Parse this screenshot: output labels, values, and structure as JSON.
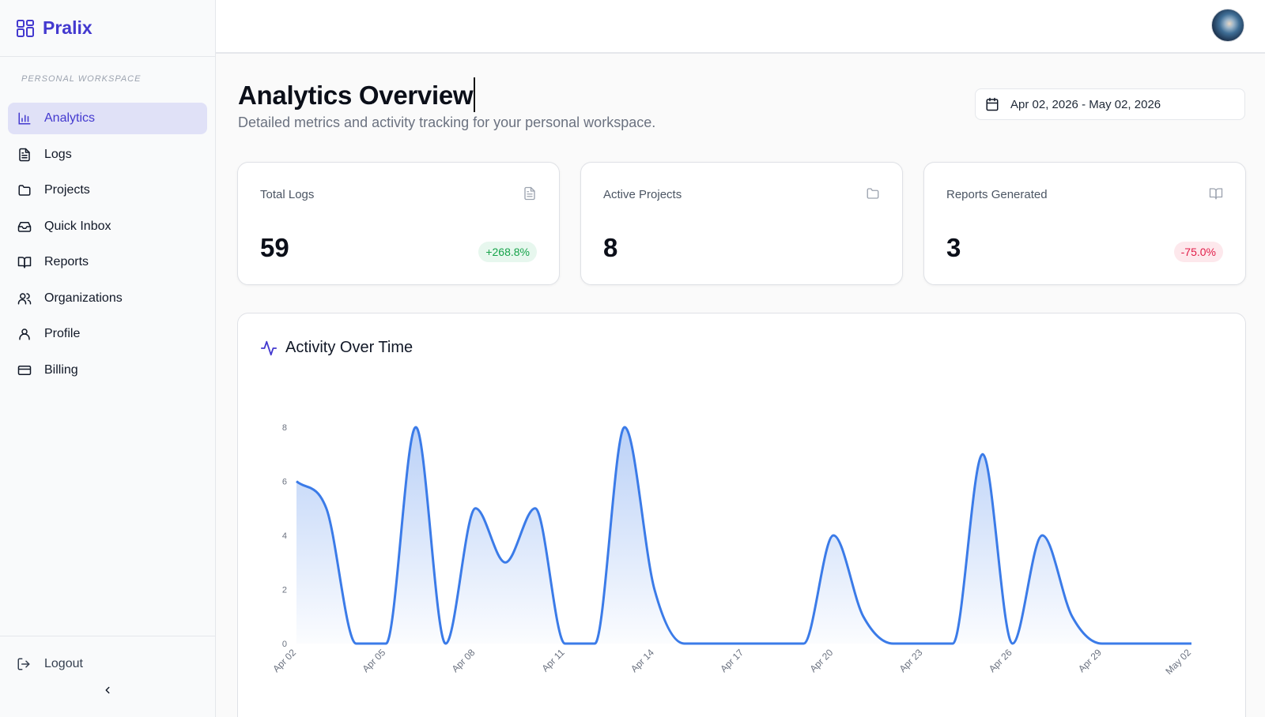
{
  "app": {
    "name": "Pralix"
  },
  "sidebar": {
    "section_label": "PERSONAL WORKSPACE",
    "items": [
      {
        "label": "Analytics",
        "icon": "bar-chart-icon",
        "active": true
      },
      {
        "label": "Logs",
        "icon": "file-text-icon"
      },
      {
        "label": "Projects",
        "icon": "folder-icon"
      },
      {
        "label": "Quick Inbox",
        "icon": "inbox-icon"
      },
      {
        "label": "Reports",
        "icon": "book-open-icon"
      },
      {
        "label": "Organizations",
        "icon": "users-icon"
      },
      {
        "label": "Profile",
        "icon": "user-icon"
      },
      {
        "label": "Billing",
        "icon": "credit-card-icon"
      }
    ],
    "logout_label": "Logout",
    "collapse_icon": "chevron-left-icon"
  },
  "header": {
    "title": "Analytics Overview",
    "subtitle": "Detailed metrics and activity tracking for your personal workspace.",
    "date_range": "Apr 02, 2026 - May 02, 2026"
  },
  "stats": [
    {
      "label": "Total Logs",
      "value": "59",
      "change": "+268.8%",
      "trend": "up",
      "icon": "file-text-icon"
    },
    {
      "label": "Active Projects",
      "value": "8",
      "change": "",
      "trend": "none",
      "icon": "folder-icon"
    },
    {
      "label": "Reports Generated",
      "value": "3",
      "change": "-75.0%",
      "trend": "down",
      "icon": "book-open-icon"
    }
  ],
  "colors": {
    "accent": "#4339cf",
    "line": "#3b7be8",
    "positive": "#16a34a",
    "negative": "#e11d48"
  },
  "chart_title": "Activity Over Time",
  "chart_data": {
    "type": "area",
    "title": "Activity Over Time",
    "xlabel": "",
    "ylabel": "",
    "ylim": [
      0,
      8
    ],
    "yticks": [
      0,
      2,
      4,
      6,
      8
    ],
    "x": [
      "Apr 02",
      "Apr 03",
      "Apr 04",
      "Apr 05",
      "Apr 06",
      "Apr 07",
      "Apr 08",
      "Apr 09",
      "Apr 10",
      "Apr 11",
      "Apr 12",
      "Apr 13",
      "Apr 14",
      "Apr 15",
      "Apr 16",
      "Apr 17",
      "Apr 18",
      "Apr 19",
      "Apr 20",
      "Apr 21",
      "Apr 22",
      "Apr 23",
      "Apr 24",
      "Apr 25",
      "Apr 26",
      "Apr 27",
      "Apr 28",
      "Apr 29",
      "Apr 30",
      "May 01",
      "May 02"
    ],
    "xticks": [
      "Apr 02",
      "Apr 05",
      "Apr 08",
      "Apr 11",
      "Apr 14",
      "Apr 17",
      "Apr 20",
      "Apr 23",
      "Apr 26",
      "Apr 29",
      "May 02"
    ],
    "series": [
      {
        "values": [
          6,
          5,
          0,
          0,
          8,
          0,
          5,
          3,
          5,
          0,
          0,
          8,
          2,
          0,
          0,
          0,
          0,
          0,
          4,
          1,
          0,
          0,
          0,
          7,
          0,
          4,
          1,
          0,
          0,
          0,
          0
        ]
      }
    ],
    "grid": false,
    "legend": "none"
  }
}
